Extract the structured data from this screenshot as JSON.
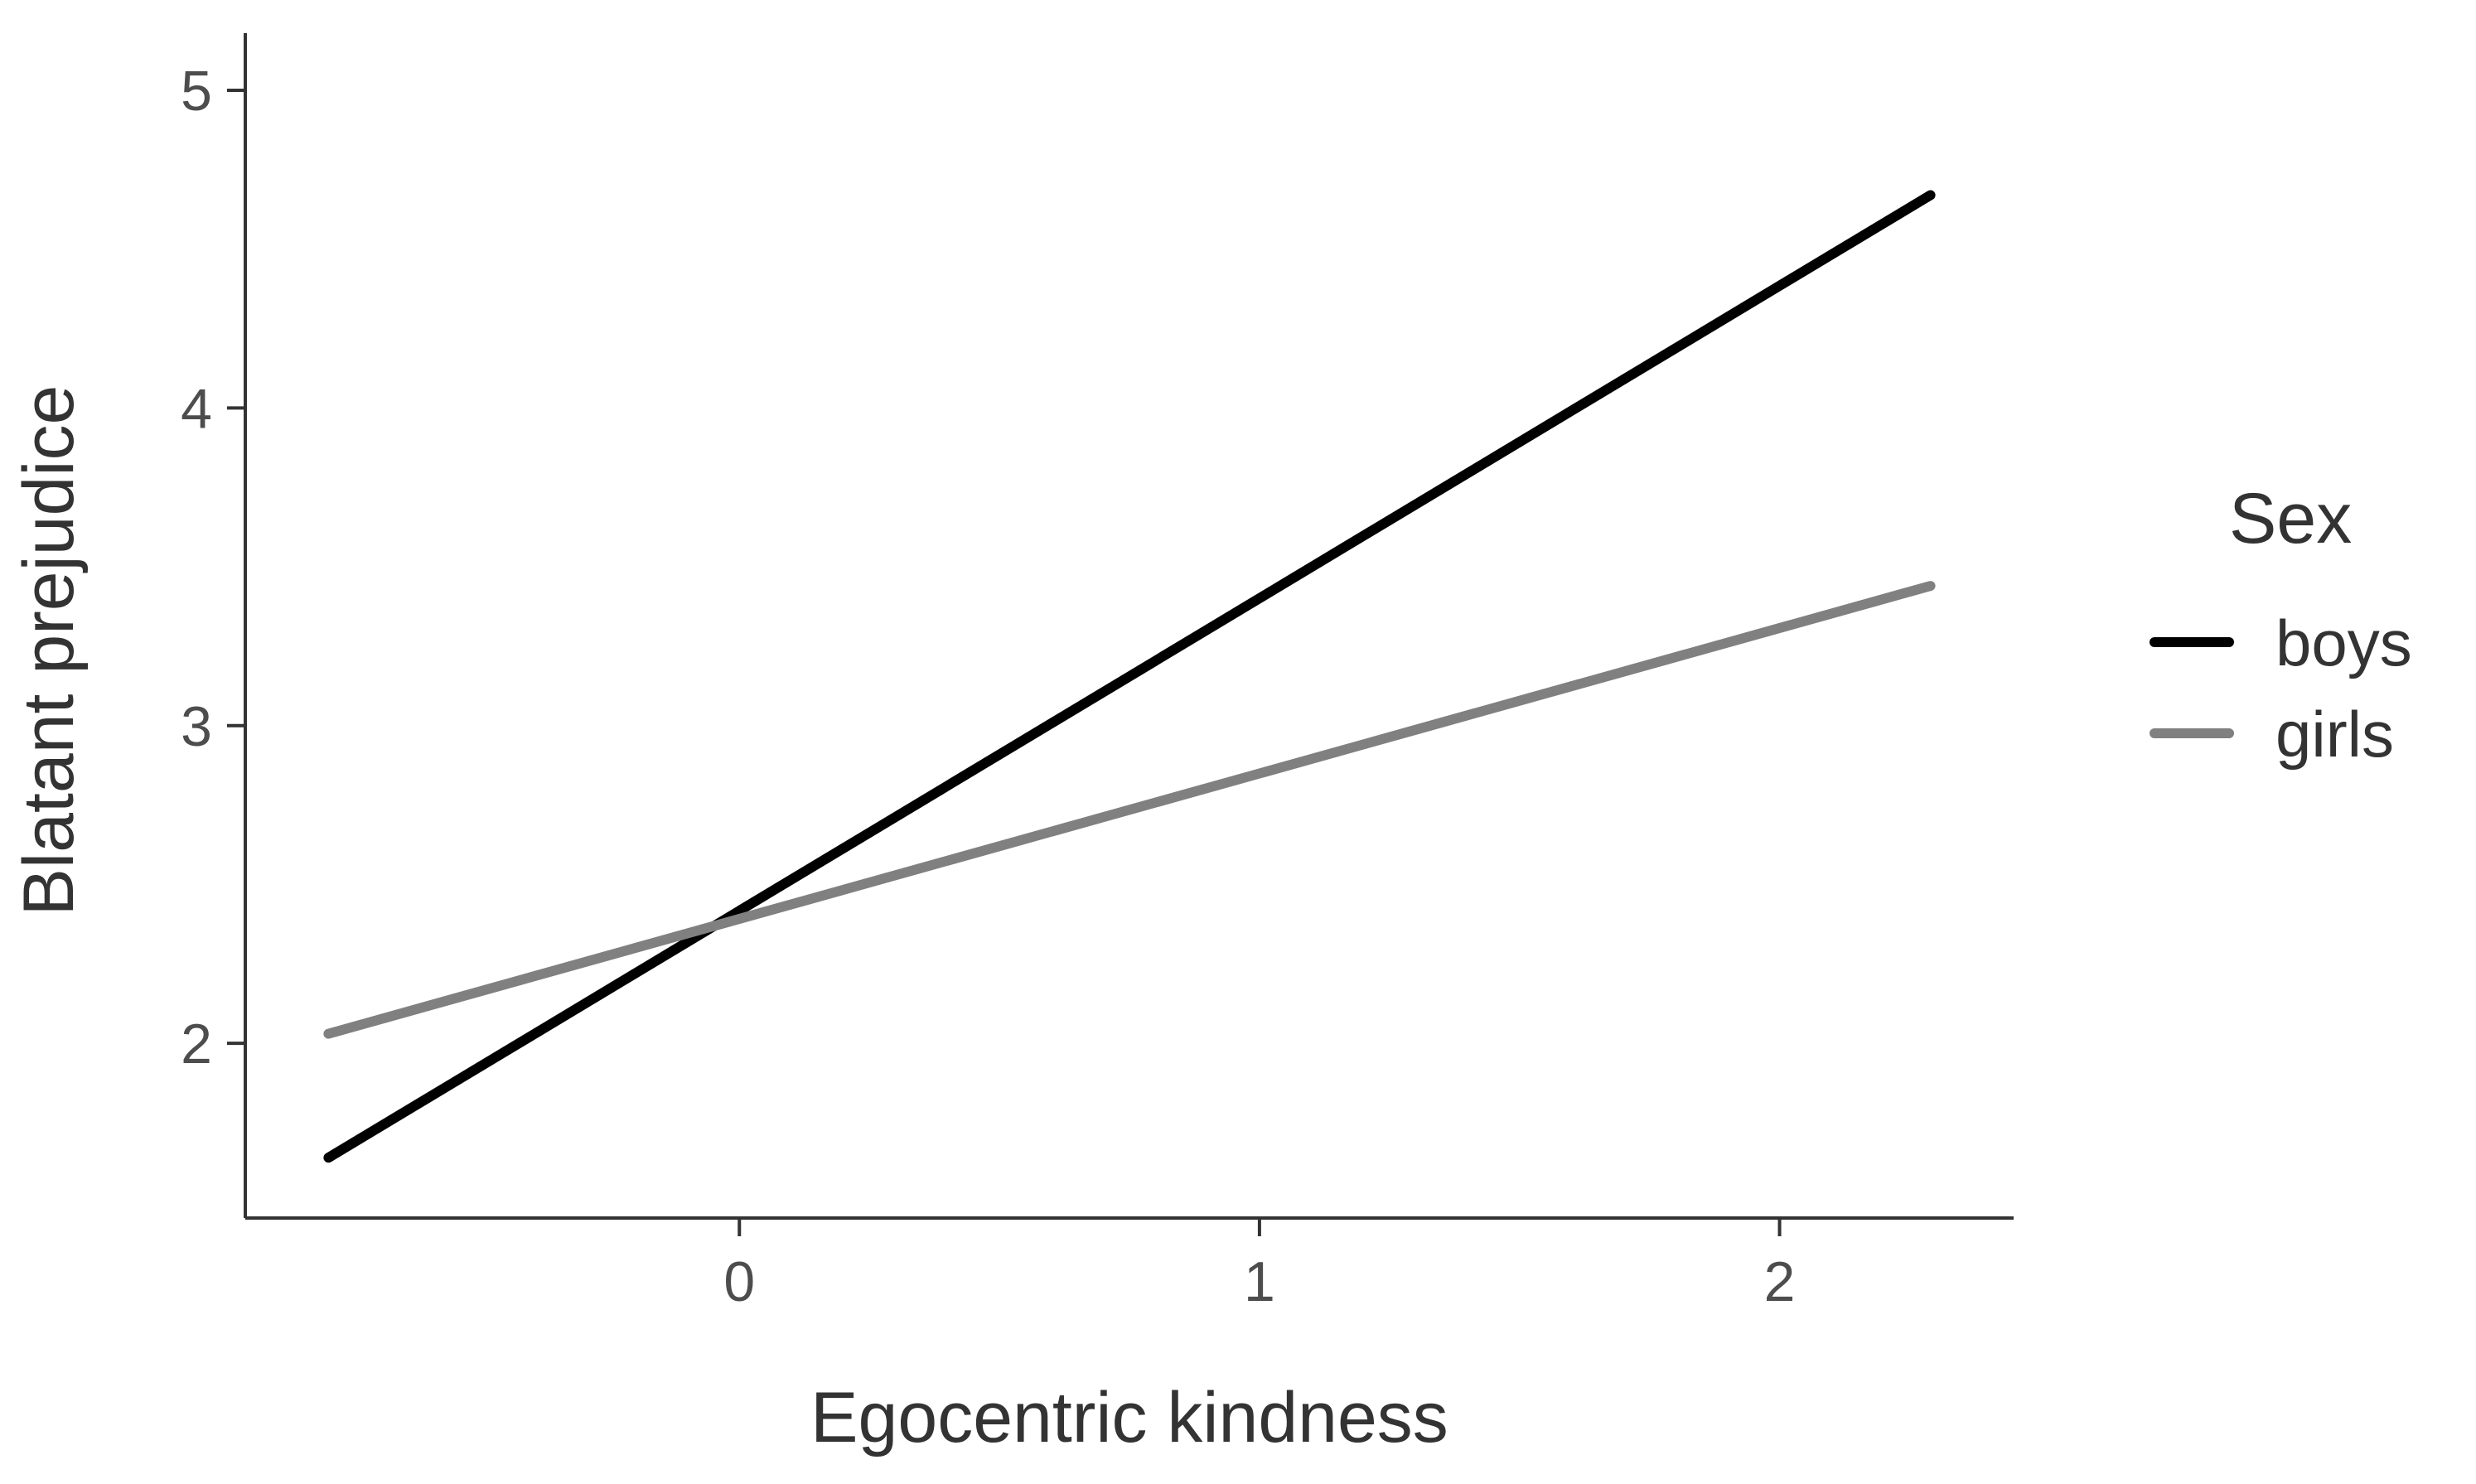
{
  "chart_data": {
    "type": "line",
    "title": "",
    "xlabel": "Egocentric kindness",
    "ylabel": "Blatant prejudice",
    "xlim": [
      -0.95,
      2.45
    ],
    "ylim": [
      1.45,
      5.18
    ],
    "x_ticks": [
      {
        "value": 0,
        "label": "0"
      },
      {
        "value": 1,
        "label": "1"
      },
      {
        "value": 2,
        "label": "2"
      }
    ],
    "y_ticks": [
      {
        "value": 2,
        "label": "2"
      },
      {
        "value": 3,
        "label": "3"
      },
      {
        "value": 4,
        "label": "4"
      },
      {
        "value": 5,
        "label": "5"
      }
    ],
    "grid": false,
    "legend": {
      "title": "Sex",
      "position": "right"
    },
    "series": [
      {
        "name": "boys",
        "color": "#000000",
        "x": [
          -0.79,
          2.29
        ],
        "y": [
          1.64,
          4.67
        ]
      },
      {
        "name": "girls",
        "color": "#808080",
        "x": [
          -0.79,
          2.29
        ],
        "y": [
          2.03,
          3.44
        ]
      }
    ]
  }
}
